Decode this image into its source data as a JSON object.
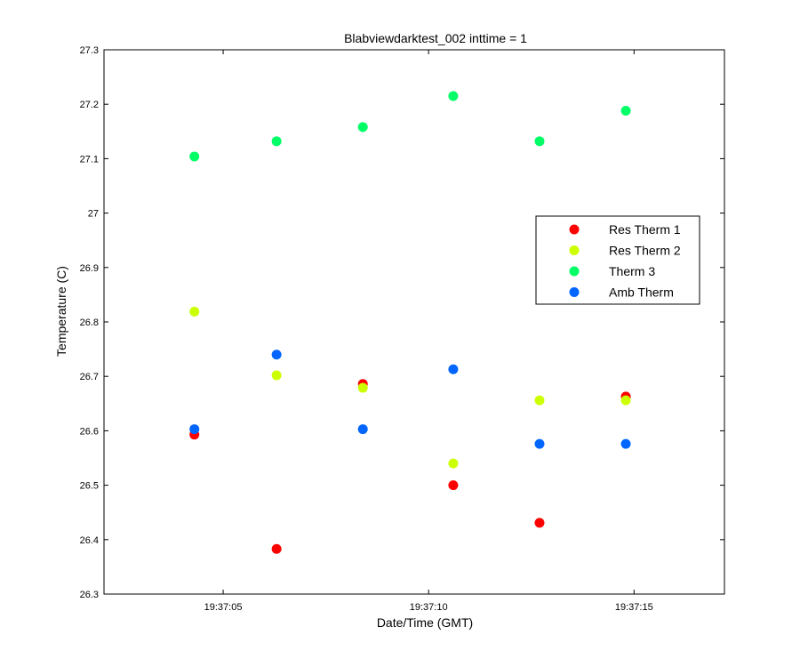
{
  "chart_data": {
    "type": "scatter",
    "title": "Blabviewdarktest_002 inttime = 1",
    "xlabel": "Date/Time (GMT)",
    "ylabel": "Temperature (C)",
    "xlim": [
      "19:37:02.1",
      "19:37:17.2"
    ],
    "ylim": [
      26.3,
      27.3
    ],
    "yticks": [
      26.3,
      26.4,
      26.5,
      26.6,
      26.7,
      26.8,
      26.9,
      27,
      27.1,
      27.2,
      27.3
    ],
    "xticks": [
      "19:37:05",
      "19:37:10",
      "19:37:15"
    ],
    "grid": false,
    "legend_position": "right",
    "x": [
      "19:37:04.3",
      "19:37:06.3",
      "19:37:08.4",
      "19:37:10.6",
      "19:37:12.7",
      "19:37:14.8"
    ],
    "series": [
      {
        "name": "Res Therm 1",
        "color": "#ff0000",
        "values": [
          26.593,
          26.383,
          26.686,
          26.5,
          26.431,
          26.663
        ]
      },
      {
        "name": "Res Therm 2",
        "color": "#ccff00",
        "values": [
          26.819,
          26.702,
          26.679,
          26.54,
          26.656,
          26.656
        ]
      },
      {
        "name": "Therm 3",
        "color": "#00ff66",
        "values": [
          27.104,
          27.132,
          27.158,
          27.215,
          27.132,
          27.188
        ]
      },
      {
        "name": "Amb Therm",
        "color": "#0066ff",
        "values": [
          26.603,
          26.74,
          26.603,
          26.713,
          26.576,
          26.576
        ]
      }
    ]
  }
}
